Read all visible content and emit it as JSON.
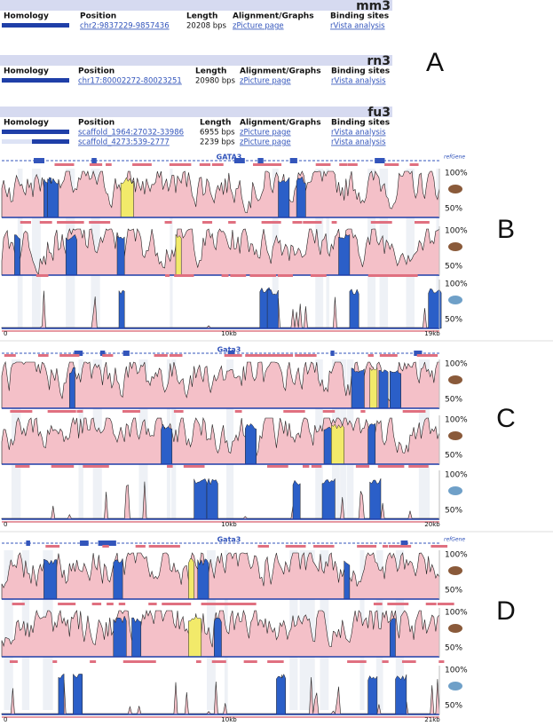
{
  "panel_a": {
    "label": "A",
    "tables": [
      {
        "genome": "mm3",
        "headers": [
          "Homology",
          "Position",
          "Length",
          "Alignment/Graphs",
          "Binding sites"
        ],
        "rows": [
          [
            "chr2:9837229-9857436",
            "20208 bps",
            "zPicture page",
            "rVista analysis"
          ]
        ]
      },
      {
        "genome": "rn3",
        "headers": [
          "Homology",
          "Position",
          "Length",
          "Alignment/Graphs",
          "Binding sites"
        ],
        "rows": [
          [
            "chr17:80002272-80023251",
            "20980 bps",
            "zPicture page",
            "rVista analysis"
          ]
        ]
      },
      {
        "genome": "fu3",
        "headers": [
          "Homology",
          "Position",
          "Length",
          "Alignment/Graphs",
          "Binding sites"
        ],
        "rows": [
          [
            "scaffold_1964:27032-33986",
            "6955 bps",
            "zPicture page",
            "rVista analysis"
          ],
          [
            "scaffold_4273:539-2777",
            "2239 bps",
            "zPicture page",
            "rVista analysis"
          ]
        ]
      }
    ]
  },
  "panels": [
    {
      "label": "B",
      "gene": "GATA3",
      "track_label": "refGene",
      "tracks": [
        {
          "top": "100%",
          "mid": "50%"
        },
        {
          "top": "100%",
          "mid": "50%"
        },
        {
          "top": "100%",
          "mid": "50%"
        }
      ],
      "axis": [
        "0",
        "10kb",
        "19kb"
      ]
    },
    {
      "label": "C",
      "gene": "Gata3",
      "tracks": [
        {
          "top": "100%",
          "mid": "50%"
        },
        {
          "top": "100%",
          "mid": "50%"
        },
        {
          "top": "100%",
          "mid": "50%"
        }
      ],
      "axis": [
        "0",
        "10kb",
        "20kb"
      ]
    },
    {
      "label": "D",
      "gene": "Gata3",
      "track_label": "refGene",
      "tracks": [
        {
          "top": "100%",
          "mid": "50%"
        },
        {
          "top": "100%",
          "mid": "50%"
        },
        {
          "top": "100%",
          "mid": "50%"
        }
      ],
      "axis": [
        "0",
        "10kb",
        "21kb"
      ]
    }
  ]
}
